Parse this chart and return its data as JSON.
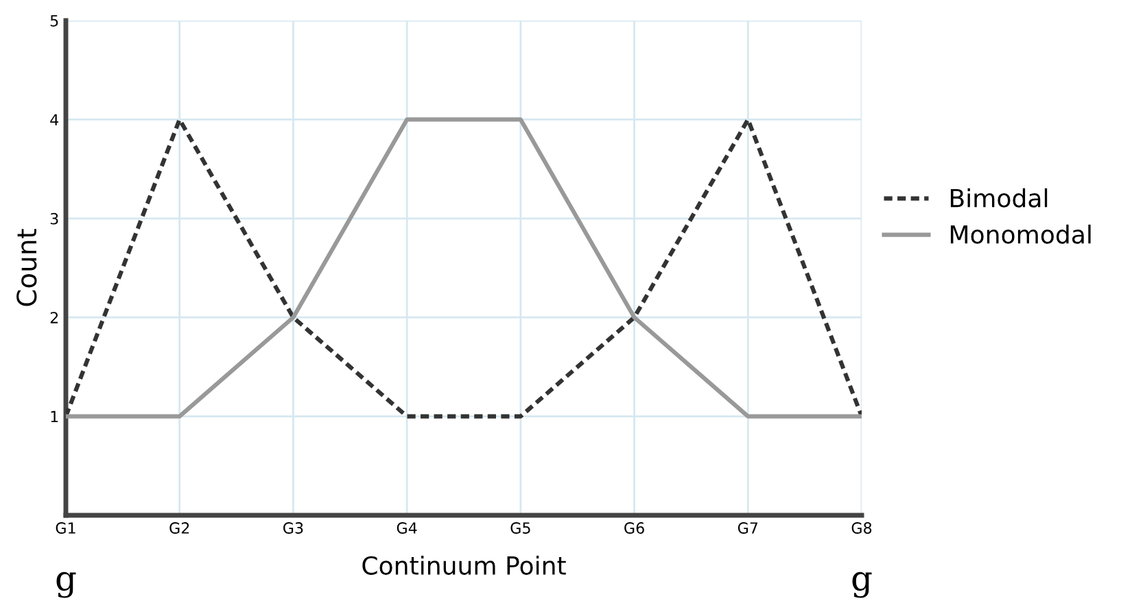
{
  "chart_data": {
    "type": "line",
    "xlabel": "Continuum Point",
    "ylabel": "Count",
    "categories": [
      "G1",
      "G2",
      "G3",
      "G4",
      "G5",
      "G6",
      "G7",
      "G8"
    ],
    "series": [
      {
        "name": "Bimodal",
        "color": "#333333",
        "line_style": "dashed",
        "values": [
          1,
          4,
          2,
          1,
          1,
          2,
          4,
          1
        ]
      },
      {
        "name": "Monomodal",
        "color": "#999999",
        "line_style": "solid",
        "values": [
          1,
          1,
          2,
          4,
          4,
          2,
          1,
          1
        ]
      }
    ],
    "ylim": [
      0,
      5
    ],
    "yticks": [
      {
        "value": 0,
        "label": null
      },
      1,
      2,
      3,
      4,
      5
    ],
    "grid": true,
    "legend": "right",
    "marker": "none",
    "annotations": [
      "g",
      "g"
    ]
  }
}
